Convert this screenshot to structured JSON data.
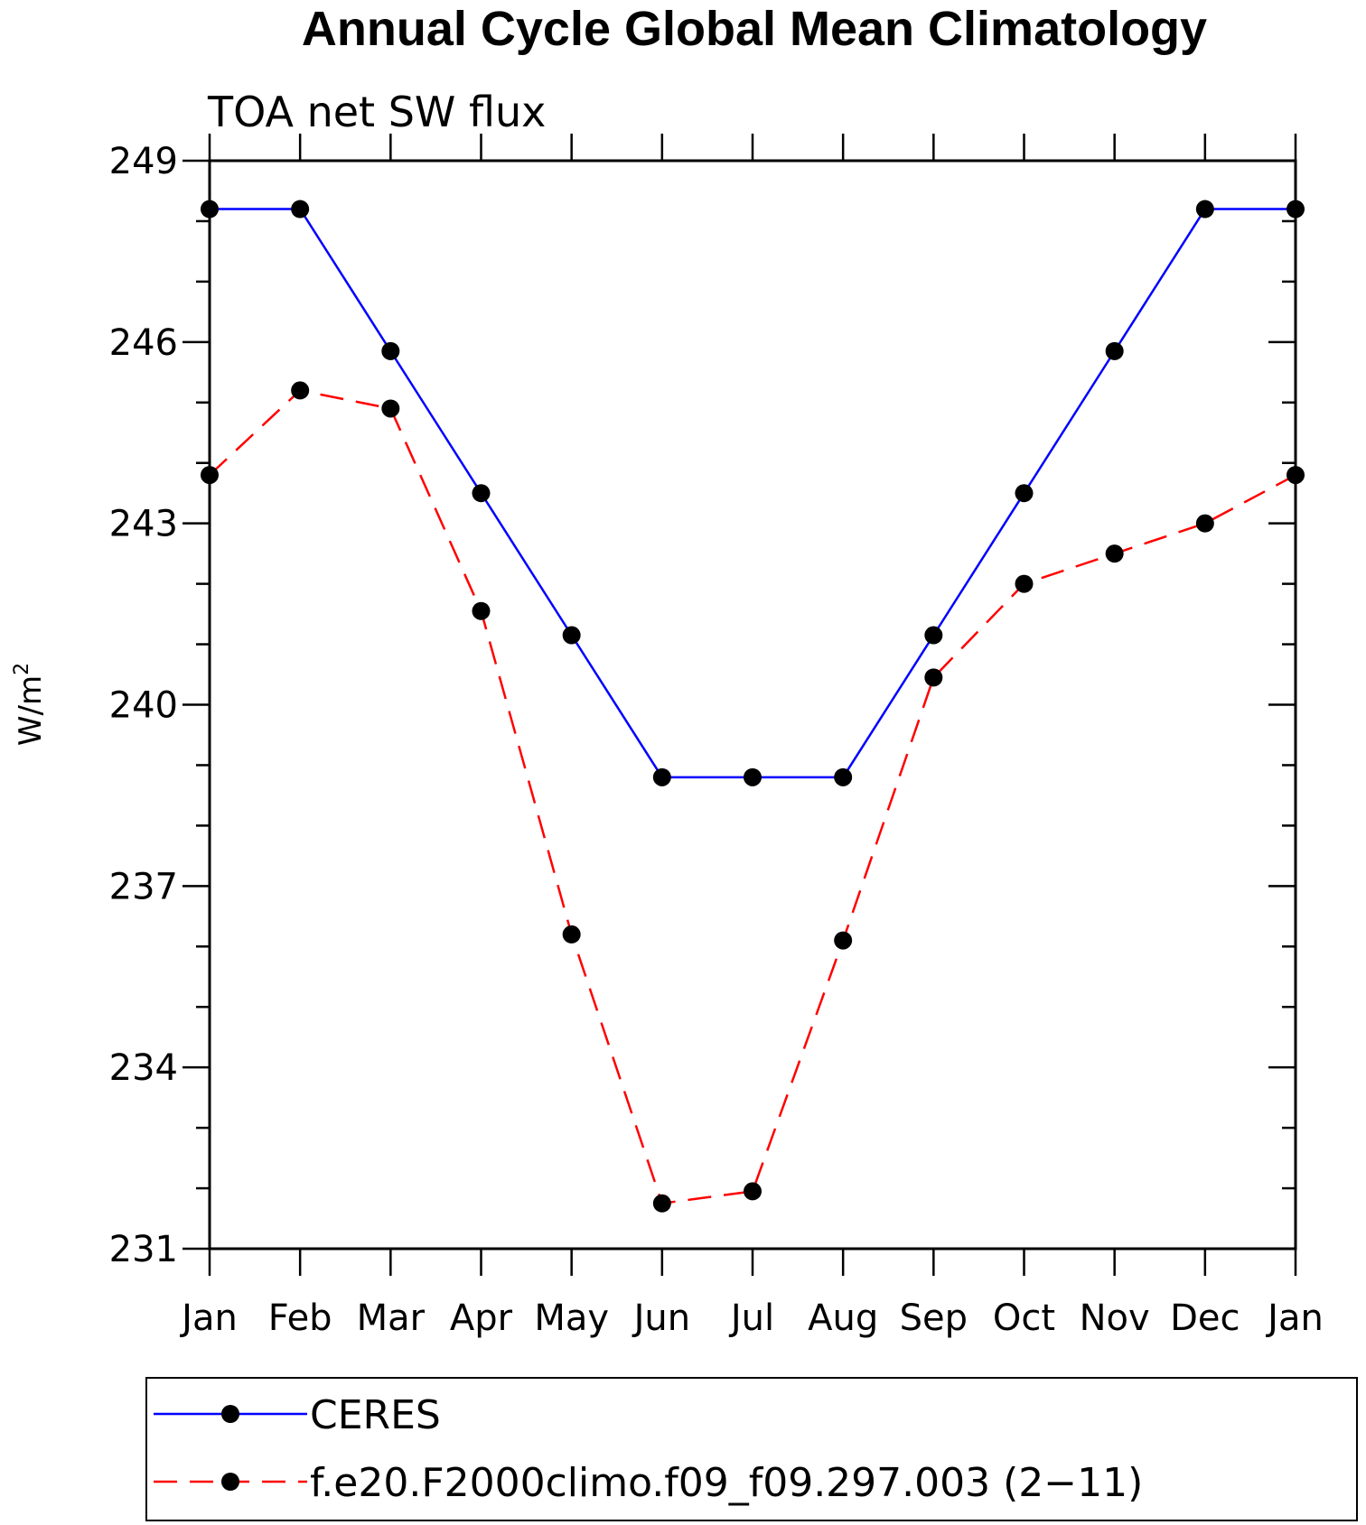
{
  "chart_data": {
    "type": "line",
    "title": "Annual Cycle Global Mean Climatology",
    "subtitle": "TOA net SW flux",
    "ylabel_base": "W/m",
    "ylabel_sup": "2",
    "xlabel": "",
    "ylim": [
      231,
      249
    ],
    "yticks": [
      231,
      234,
      237,
      240,
      243,
      246,
      249
    ],
    "yticks_minor_step": 1,
    "categories": [
      "Jan",
      "Feb",
      "Mar",
      "Apr",
      "May",
      "Jun",
      "Jul",
      "Aug",
      "Sep",
      "Oct",
      "Nov",
      "Dec",
      "Jan"
    ],
    "series": [
      {
        "name": "CERES",
        "color": "#0000ff",
        "style": "solid",
        "marker": "circle",
        "values": [
          248.2,
          248.2,
          245.85,
          243.5,
          241.15,
          238.8,
          238.8,
          238.8,
          241.15,
          243.5,
          245.85,
          248.2,
          248.2
        ]
      },
      {
        "name": "f.e20.F2000climo.f09_f09.297.003 (2−11)",
        "color": "#ff0000",
        "style": "dashed",
        "marker": "circle",
        "values": [
          243.8,
          245.2,
          244.9,
          241.55,
          236.2,
          231.75,
          231.95,
          236.1,
          240.45,
          242.0,
          242.5,
          243.0,
          243.8
        ]
      }
    ],
    "legend_position": "bottom"
  }
}
